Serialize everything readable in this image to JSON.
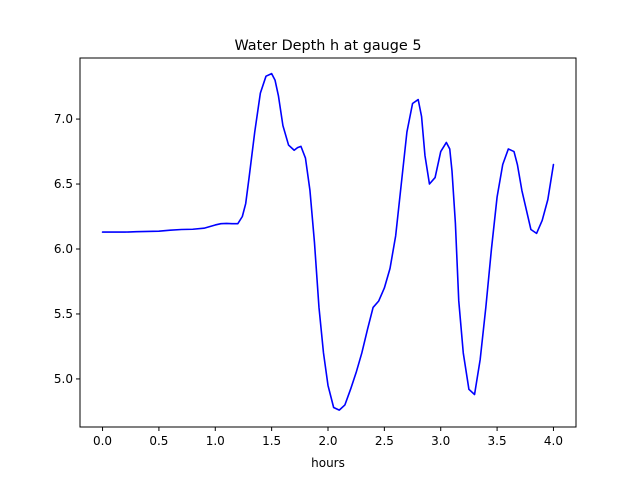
{
  "chart_data": {
    "type": "line",
    "title": "Water Depth h at gauge 5",
    "xlabel": "hours",
    "ylabel": "",
    "xlim": [
      -0.2,
      4.2
    ],
    "ylim": [
      4.63,
      7.47
    ],
    "xticks": [
      0.0,
      0.5,
      1.0,
      1.5,
      2.0,
      2.5,
      3.0,
      3.5,
      4.0
    ],
    "xtick_labels": [
      "0.0",
      "0.5",
      "1.0",
      "1.5",
      "2.0",
      "2.5",
      "3.0",
      "3.5",
      "4.0"
    ],
    "yticks": [
      5.0,
      5.5,
      6.0,
      6.5,
      7.0
    ],
    "ytick_labels": [
      "5.0",
      "5.5",
      "6.0",
      "6.5",
      "7.0"
    ],
    "grid": false,
    "series": [
      {
        "color": "#0000ff",
        "x": [
          0.0,
          0.1,
          0.2,
          0.3,
          0.4,
          0.5,
          0.6,
          0.7,
          0.8,
          0.9,
          1.0,
          1.05,
          1.1,
          1.15,
          1.2,
          1.24,
          1.27,
          1.3,
          1.35,
          1.4,
          1.45,
          1.5,
          1.53,
          1.56,
          1.6,
          1.65,
          1.7,
          1.73,
          1.76,
          1.8,
          1.84,
          1.88,
          1.92,
          1.96,
          2.0,
          2.05,
          2.1,
          2.15,
          2.2,
          2.25,
          2.3,
          2.35,
          2.4,
          2.45,
          2.5,
          2.55,
          2.6,
          2.65,
          2.7,
          2.75,
          2.8,
          2.83,
          2.86,
          2.9,
          2.95,
          3.0,
          3.05,
          3.08,
          3.1,
          3.13,
          3.16,
          3.2,
          3.25,
          3.3,
          3.35,
          3.4,
          3.45,
          3.5,
          3.55,
          3.6,
          3.65,
          3.68,
          3.72,
          3.76,
          3.8,
          3.85,
          3.9,
          3.95,
          4.0
        ],
        "y": [
          6.13,
          6.13,
          6.13,
          6.133,
          6.135,
          6.137,
          6.145,
          6.15,
          6.152,
          6.16,
          6.185,
          6.195,
          6.197,
          6.195,
          6.195,
          6.25,
          6.35,
          6.55,
          6.9,
          7.2,
          7.33,
          7.35,
          7.3,
          7.18,
          6.95,
          6.8,
          6.76,
          6.78,
          6.79,
          6.7,
          6.45,
          6.05,
          5.55,
          5.2,
          4.95,
          4.78,
          4.76,
          4.8,
          4.92,
          5.05,
          5.2,
          5.38,
          5.55,
          5.6,
          5.7,
          5.85,
          6.1,
          6.5,
          6.9,
          7.12,
          7.15,
          7.02,
          6.72,
          6.5,
          6.55,
          6.75,
          6.82,
          6.77,
          6.6,
          6.2,
          5.6,
          5.2,
          4.92,
          4.88,
          5.15,
          5.55,
          6.0,
          6.4,
          6.65,
          6.77,
          6.75,
          6.65,
          6.45,
          6.3,
          6.15,
          6.12,
          6.22,
          6.38,
          6.65
        ]
      }
    ]
  }
}
